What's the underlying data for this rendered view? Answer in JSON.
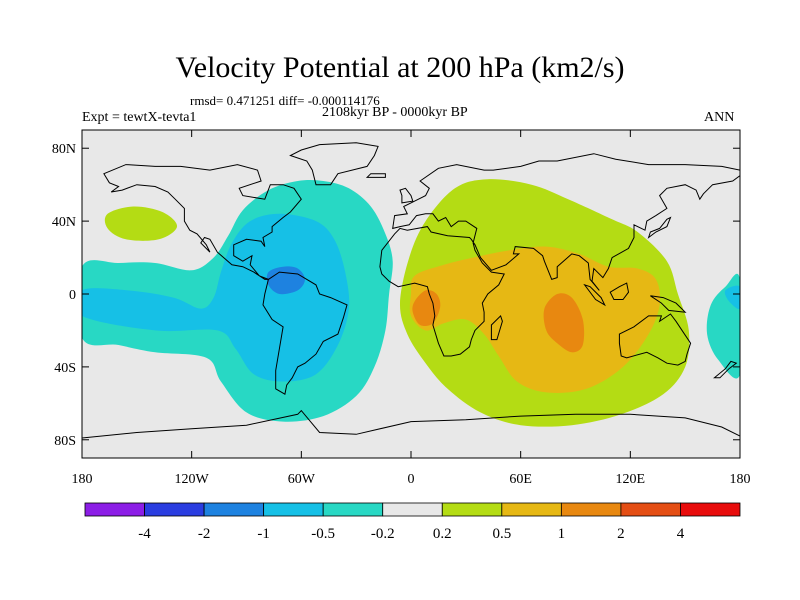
{
  "chart_data": {
    "type": "heatmap",
    "title": "Velocity Potential at 200 hPa (km2/s)",
    "stats_line": "rmsd= 0.471251  diff= -0.000114176",
    "rmsd": 0.471251,
    "diff": -0.000114176,
    "left_label": "Expt = tewtX-tevta1",
    "center_label": "2108kyr BP - 0000kyr BP",
    "right_label": "ANN",
    "x_axis": {
      "range": [
        -180,
        180
      ],
      "ticks": [
        {
          "value": -180,
          "label": "180"
        },
        {
          "value": -120,
          "label": "120W"
        },
        {
          "value": -60,
          "label": "60W"
        },
        {
          "value": 0,
          "label": "0"
        },
        {
          "value": 60,
          "label": "60E"
        },
        {
          "value": 120,
          "label": "120E"
        },
        {
          "value": 180,
          "label": "180"
        }
      ]
    },
    "y_axis": {
      "range": [
        -90,
        90
      ],
      "ticks": [
        {
          "value": 80,
          "label": "80N"
        },
        {
          "value": 40,
          "label": "40N"
        },
        {
          "value": 0,
          "label": "0"
        },
        {
          "value": -40,
          "label": "40S"
        },
        {
          "value": -80,
          "label": "80S"
        }
      ]
    },
    "contour_levels": [
      "-4",
      "-2",
      "-1",
      "-0.5",
      "-0.2",
      "0.2",
      "0.5",
      "1",
      "2",
      "4"
    ],
    "color_bins": [
      "#8c1ee6",
      "#2a3de0",
      "#1e82e0",
      "#16c0e6",
      "#28d8c4",
      "#e8e8e8",
      "#b4dc14",
      "#e6b814",
      "#e88810",
      "#e44e14",
      "#e80c0c"
    ],
    "regions": [
      {
        "name": "negative-pacific-atlantic",
        "level": "-0.5 to -0.2",
        "points": [
          [
            -180,
            15
          ],
          [
            -160,
            17
          ],
          [
            -140,
            17
          ],
          [
            -120,
            13
          ],
          [
            -108,
            20
          ],
          [
            -100,
            32
          ],
          [
            -92,
            46
          ],
          [
            -78,
            57
          ],
          [
            -62,
            62
          ],
          [
            -48,
            62
          ],
          [
            -34,
            58
          ],
          [
            -22,
            48
          ],
          [
            -14,
            33
          ],
          [
            -10,
            18
          ],
          [
            -12,
            0
          ],
          [
            -14,
            -20
          ],
          [
            -20,
            -40
          ],
          [
            -30,
            -56
          ],
          [
            -48,
            -67
          ],
          [
            -70,
            -70
          ],
          [
            -90,
            -65
          ],
          [
            -104,
            -48
          ],
          [
            -112,
            -35
          ],
          [
            -140,
            -32
          ],
          [
            -160,
            -28
          ],
          [
            -180,
            -24
          ]
        ]
      },
      {
        "name": "negative-core",
        "level": "-1 to -0.5",
        "points": [
          [
            -180,
            2
          ],
          [
            -155,
            2
          ],
          [
            -130,
            -2
          ],
          [
            -115,
            -8
          ],
          [
            -108,
            -2
          ],
          [
            -104,
            12
          ],
          [
            -98,
            28
          ],
          [
            -88,
            40
          ],
          [
            -72,
            44
          ],
          [
            -52,
            40
          ],
          [
            -42,
            30
          ],
          [
            -36,
            12
          ],
          [
            -34,
            -8
          ],
          [
            -40,
            -28
          ],
          [
            -52,
            -44
          ],
          [
            -70,
            -48
          ],
          [
            -86,
            -44
          ],
          [
            -96,
            -30
          ],
          [
            -106,
            -20
          ],
          [
            -140,
            -20
          ],
          [
            -180,
            -12
          ]
        ]
      },
      {
        "name": "negative-center",
        "level": "-2 to -1",
        "points": [
          [
            -78,
            12
          ],
          [
            -70,
            15
          ],
          [
            -62,
            14
          ],
          [
            -58,
            8
          ],
          [
            -62,
            2
          ],
          [
            -72,
            0
          ],
          [
            -78,
            5
          ]
        ]
      },
      {
        "name": "positive-north-pacific",
        "level": "0.2 to 0.5",
        "points": [
          [
            -166,
            44
          ],
          [
            -152,
            48
          ],
          [
            -136,
            45
          ],
          [
            -128,
            37
          ],
          [
            -138,
            30
          ],
          [
            -156,
            30
          ],
          [
            -166,
            36
          ]
        ]
      },
      {
        "name": "positive-broad",
        "level": "0.2 to 0.5",
        "points": [
          [
            -1,
            20
          ],
          [
            8,
            40
          ],
          [
            24,
            58
          ],
          [
            42,
            63
          ],
          [
            66,
            60
          ],
          [
            86,
            52
          ],
          [
            110,
            41
          ],
          [
            124,
            34
          ],
          [
            140,
            18
          ],
          [
            146,
            0
          ],
          [
            152,
            -20
          ],
          [
            150,
            -40
          ],
          [
            138,
            -55
          ],
          [
            115,
            -66
          ],
          [
            88,
            -72
          ],
          [
            60,
            -72
          ],
          [
            38,
            -65
          ],
          [
            20,
            -52
          ],
          [
            8,
            -38
          ],
          [
            -2,
            -22
          ],
          [
            -6,
            -5
          ]
        ]
      },
      {
        "name": "positive-core",
        "level": "0.5 to 1",
        "points": [
          [
            2,
            10
          ],
          [
            18,
            16
          ],
          [
            34,
            20
          ],
          [
            54,
            24
          ],
          [
            74,
            26
          ],
          [
            92,
            22
          ],
          [
            108,
            15
          ],
          [
            124,
            14
          ],
          [
            134,
            8
          ],
          [
            136,
            -6
          ],
          [
            130,
            -22
          ],
          [
            116,
            -40
          ],
          [
            96,
            -52
          ],
          [
            74,
            -54
          ],
          [
            58,
            -48
          ],
          [
            48,
            -34
          ],
          [
            40,
            -22
          ],
          [
            30,
            -14
          ],
          [
            18,
            -16
          ],
          [
            8,
            -20
          ],
          [
            0,
            -12
          ],
          [
            0,
            0
          ]
        ]
      },
      {
        "name": "positive-west-africa",
        "level": "1 to 2",
        "points": [
          [
            2,
            -4
          ],
          [
            8,
            2
          ],
          [
            14,
            0
          ],
          [
            16,
            -7
          ],
          [
            12,
            -16
          ],
          [
            5,
            -17
          ],
          [
            1,
            -10
          ]
        ]
      },
      {
        "name": "positive-indian-ocean",
        "level": "1 to 2",
        "points": [
          [
            73,
            -8
          ],
          [
            80,
            0
          ],
          [
            88,
            -2
          ],
          [
            94,
            -14
          ],
          [
            94,
            -28
          ],
          [
            88,
            -32
          ],
          [
            80,
            -27
          ],
          [
            74,
            -20
          ]
        ]
      },
      {
        "name": "negative-east-edge",
        "level": "-0.5 to -0.2",
        "points": [
          [
            180,
            -44
          ],
          [
            168,
            -36
          ],
          [
            162,
            -22
          ],
          [
            164,
            -6
          ],
          [
            172,
            4
          ],
          [
            180,
            8
          ]
        ]
      },
      {
        "name": "negative-east-edge-core",
        "level": "-1 to -0.5",
        "points": [
          [
            180,
            -8
          ],
          [
            174,
            -4
          ],
          [
            172,
            2
          ],
          [
            180,
            4
          ]
        ]
      }
    ]
  }
}
